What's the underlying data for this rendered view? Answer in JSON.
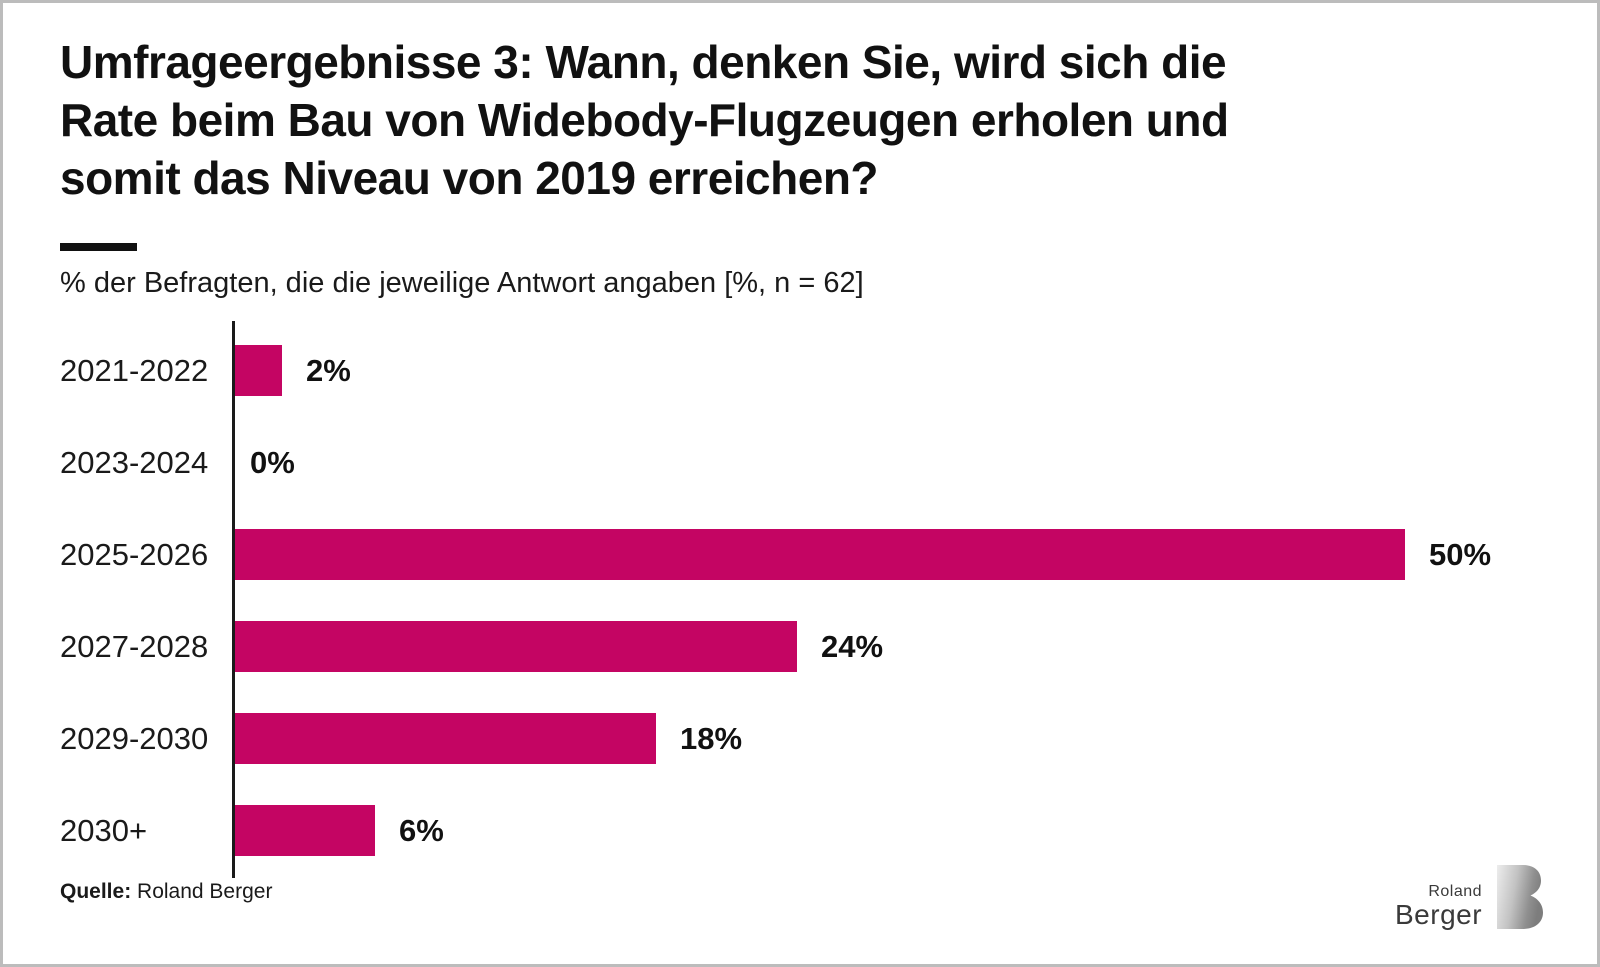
{
  "frame": {
    "title_lines": [
      "Umfrageergebnisse 3: Wann, denken Sie, wird sich die",
      "Rate beim Bau von Widebody-Flugzeugen erholen und",
      "somit das Niveau von 2019 erreichen?"
    ],
    "subtitle": "% der Befragten, die die jeweilige Antwort angaben [%, n = 62]",
    "source": {
      "label": "Quelle:",
      "value": "Roland Berger"
    },
    "logo": {
      "line1": "Roland",
      "line2": "Berger",
      "mark": "roland-berger-b-icon"
    }
  },
  "colors": {
    "bar": "#C40563",
    "axis": "#1A1A1A",
    "text": "#1A1A1A",
    "frame_border": "#BCBCBC",
    "logo_text": "#3A3A3A"
  },
  "chart_data": {
    "type": "bar",
    "orientation": "horizontal",
    "title": "Umfrageergebnisse 3: Wann, denken Sie, wird sich die Rate beim Bau von Widebody-Flugzeugen erholen und somit das Niveau von 2019 erreichen?",
    "subtitle": "% der Befragten, die die jeweilige Antwort angaben [%, n = 62]",
    "categories": [
      "2021-2022",
      "2023-2024",
      "2025-2026",
      "2027-2028",
      "2029-2030",
      "2030+"
    ],
    "values": [
      2,
      0,
      50,
      24,
      18,
      6
    ],
    "value_labels": [
      "2%",
      "0%",
      "50%",
      "24%",
      "18%",
      "6%"
    ],
    "unit": "%",
    "n": 62,
    "xlim": [
      0,
      50
    ],
    "grid": false,
    "legend": false,
    "bar_color": "#C40563",
    "source": "Roland Berger"
  }
}
